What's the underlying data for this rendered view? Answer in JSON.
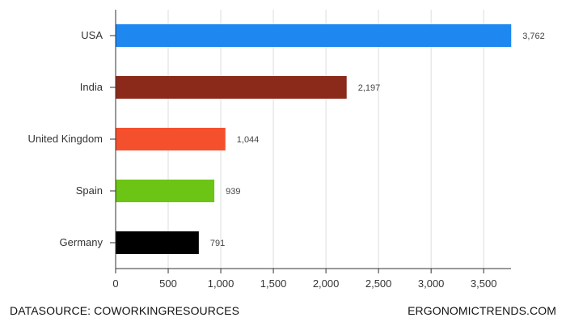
{
  "chart_data": {
    "type": "bar",
    "orientation": "horizontal",
    "categories": [
      "USA",
      "India",
      "United Kingdom",
      "Spain",
      "Germany"
    ],
    "values": [
      3762,
      2197,
      1044,
      939,
      791
    ],
    "value_labels": [
      "3,762",
      "2,197",
      "1,044",
      "939",
      "791"
    ],
    "colors": [
      "#1e88f0",
      "#8b2a1a",
      "#f5502e",
      "#6cc514",
      "#000000"
    ],
    "xticks": [
      0,
      500,
      1000,
      1500,
      2000,
      2500,
      3000,
      3500
    ],
    "xtick_labels": [
      "0",
      "500",
      "1,000",
      "1,500",
      "2,000",
      "2,500",
      "3,000",
      "3,500"
    ],
    "xlim": [
      0,
      3760
    ],
    "grid": true,
    "title": "",
    "xlabel": "",
    "ylabel": ""
  },
  "footer": {
    "left": "DATASOURCE: COWORKINGRESOURCES",
    "right": "ERGONOMICTRENDS.COM"
  }
}
